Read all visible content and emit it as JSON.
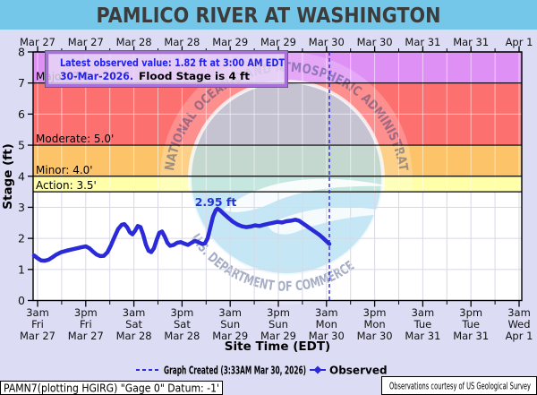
{
  "title": "PAMLICO RIVER AT WASHINGTON",
  "info_box": {
    "line1": "Latest observed value: 1.82 ft at 3:00 AM EDT",
    "line2_date": "30-Mar-2026.",
    "line2_rest": "Flood Stage is 4 ft"
  },
  "annotation": "2.95 ft",
  "axes": {
    "x_title": "Site Time (EDT)",
    "y_title": "Stage (ft)",
    "y_ticks": [
      "0",
      "1",
      "2",
      "3",
      "4",
      "5",
      "6",
      "7",
      "8"
    ],
    "top_labels": [
      "Mar 27",
      "Mar 27",
      "Mar 28",
      "Mar 28",
      "Mar 29",
      "Mar 29",
      "Mar 30",
      "Mar 30",
      "Mar 31",
      "Mar 31",
      "Apr 1"
    ],
    "bottom_labels": [
      [
        "3am",
        "Fri",
        "Mar 27"
      ],
      [
        "3pm",
        "Fri",
        "Mar 27"
      ],
      [
        "3am",
        "Sat",
        "Mar 28"
      ],
      [
        "3pm",
        "Sat",
        "Mar 28"
      ],
      [
        "3am",
        "Sun",
        "Mar 29"
      ],
      [
        "3pm",
        "Sun",
        "Mar 29"
      ],
      [
        "3am",
        "Mon",
        "Mar 30"
      ],
      [
        "3pm",
        "Mon",
        "Mar 30"
      ],
      [
        "3am",
        "Tue",
        "Mar 31"
      ],
      [
        "3pm",
        "Tue",
        "Mar 31"
      ],
      [
        "3am",
        "Wed",
        "Apr 1"
      ]
    ]
  },
  "flood_zones": [
    {
      "name": "Major",
      "label": "Major: 7.0",
      "from": 7.0,
      "to": 8.0,
      "color": "#de90f5"
    },
    {
      "name": "Moderate",
      "label": "Moderate: 5.0'",
      "from": 5.0,
      "to": 7.0,
      "color": "#fd7070"
    },
    {
      "name": "Minor",
      "label": "Minor: 4.0'",
      "from": 4.0,
      "to": 5.0,
      "color": "#fcc368"
    },
    {
      "name": "Action",
      "label": "Action: 3.5'",
      "from": 3.5,
      "to": 4.0,
      "color": "#feffa8"
    }
  ],
  "legend": {
    "created_label": "Graph Created (3:33AM Mar 30, 2026)",
    "observed_label": "Observed"
  },
  "watermark": {
    "top_text": "NATIONAL OCEANIC AND ATMOSPHERIC ADMINISTRATION",
    "bottom_text": "U.S. DEPARTMENT OF COMMERCE"
  },
  "footer": {
    "left": "PAMN7(plotting HGIRG) \"Gage 0\" Datum: -1'",
    "right": "Observations courtesy of US Geological Survey"
  },
  "colors": {
    "title_bg": "#74c7e9",
    "page_bg": "#dcdcf4",
    "observed_line": "#2a2ad9",
    "info_text_blue": "#2222ee",
    "grid_on_white": "#d8d8e8",
    "grid_on_bands": "#ffffff"
  },
  "chart_data": {
    "type": "line",
    "title": "PAMLICO RIVER AT WASHINGTON",
    "xlabel": "Site Time (EDT)",
    "ylabel": "Stage (ft)",
    "ylim": [
      0,
      8
    ],
    "x_range": [
      "3am Fri Mar 27",
      "3am Wed Apr 1"
    ],
    "grid": true,
    "flood_stage_ft": 4,
    "latest_observed": {
      "value_ft": 1.82,
      "time": "3:00 AM EDT",
      "date": "30-Mar-2026"
    },
    "peak_annotation": {
      "value_ft": 2.95
    },
    "current_time_marker": "3am Mon Mar 30",
    "series": [
      {
        "name": "Observed",
        "note": "points are [x_px, stage_ft]",
        "points": [
          [
            38,
            1.45
          ],
          [
            42,
            1.36
          ],
          [
            46,
            1.29
          ],
          [
            50,
            1.28
          ],
          [
            54,
            1.31
          ],
          [
            58,
            1.38
          ],
          [
            63,
            1.48
          ],
          [
            68,
            1.55
          ],
          [
            74,
            1.6
          ],
          [
            80,
            1.64
          ],
          [
            86,
            1.68
          ],
          [
            92,
            1.72
          ],
          [
            96,
            1.74
          ],
          [
            100,
            1.68
          ],
          [
            104,
            1.57
          ],
          [
            108,
            1.48
          ],
          [
            112,
            1.43
          ],
          [
            116,
            1.44
          ],
          [
            120,
            1.55
          ],
          [
            124,
            1.78
          ],
          [
            128,
            2.05
          ],
          [
            132,
            2.3
          ],
          [
            136,
            2.44
          ],
          [
            139,
            2.46
          ],
          [
            142,
            2.36
          ],
          [
            145,
            2.2
          ],
          [
            148,
            2.13
          ],
          [
            151,
            2.25
          ],
          [
            154,
            2.4
          ],
          [
            157,
            2.36
          ],
          [
            160,
            2.12
          ],
          [
            163,
            1.8
          ],
          [
            166,
            1.6
          ],
          [
            169,
            1.56
          ],
          [
            172,
            1.68
          ],
          [
            175,
            1.95
          ],
          [
            178,
            2.18
          ],
          [
            181,
            2.22
          ],
          [
            184,
            2.06
          ],
          [
            187,
            1.86
          ],
          [
            190,
            1.76
          ],
          [
            194,
            1.79
          ],
          [
            198,
            1.86
          ],
          [
            202,
            1.88
          ],
          [
            206,
            1.83
          ],
          [
            210,
            1.79
          ],
          [
            214,
            1.86
          ],
          [
            218,
            1.92
          ],
          [
            222,
            1.87
          ],
          [
            226,
            1.82
          ],
          [
            229,
            1.84
          ],
          [
            232,
            2.0
          ],
          [
            235,
            2.35
          ],
          [
            238,
            2.7
          ],
          [
            241,
            2.9
          ],
          [
            243,
            2.96
          ],
          [
            246,
            2.9
          ],
          [
            250,
            2.79
          ],
          [
            255,
            2.66
          ],
          [
            260,
            2.54
          ],
          [
            265,
            2.45
          ],
          [
            270,
            2.39
          ],
          [
            275,
            2.36
          ],
          [
            280,
            2.38
          ],
          [
            285,
            2.42
          ],
          [
            290,
            2.4
          ],
          [
            295,
            2.44
          ],
          [
            300,
            2.47
          ],
          [
            305,
            2.5
          ],
          [
            310,
            2.53
          ],
          [
            315,
            2.51
          ],
          [
            320,
            2.55
          ],
          [
            325,
            2.57
          ],
          [
            330,
            2.6
          ],
          [
            334,
            2.57
          ],
          [
            338,
            2.49
          ],
          [
            342,
            2.41
          ],
          [
            347,
            2.31
          ],
          [
            352,
            2.21
          ],
          [
            357,
            2.11
          ],
          [
            361,
            2.01
          ],
          [
            364,
            1.93
          ],
          [
            368,
            1.82
          ]
        ]
      }
    ]
  }
}
